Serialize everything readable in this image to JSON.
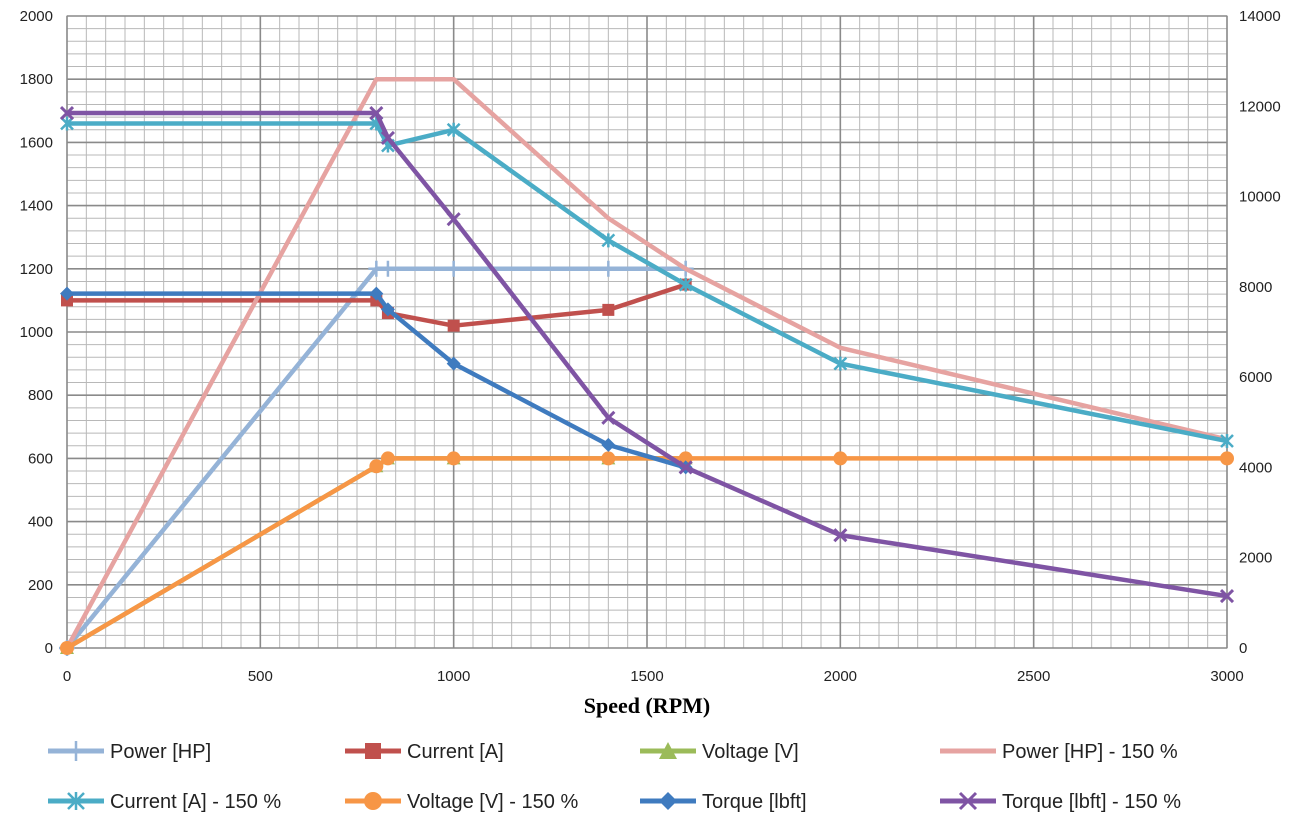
{
  "chart_data": {
    "type": "line",
    "title": "",
    "xlabel": "Speed (RPM)",
    "ylabel": "",
    "y2label": "",
    "xlim": [
      0,
      3000
    ],
    "ylim": [
      0,
      2000
    ],
    "y2lim": [
      0,
      14000
    ],
    "x_ticks": [
      0,
      500,
      1000,
      1500,
      2000,
      2500,
      3000
    ],
    "y_ticks": [
      0,
      200,
      400,
      600,
      800,
      1000,
      1200,
      1400,
      1600,
      1800,
      2000
    ],
    "y2_ticks": [
      0,
      2000,
      4000,
      6000,
      8000,
      10000,
      12000,
      14000
    ],
    "grid": true,
    "legend_position": "bottom",
    "series": [
      {
        "name": "Power [HP]",
        "color": "#95b3d7",
        "marker": "plus",
        "axis": "left",
        "x": [
          0,
          800,
          830,
          1000,
          1400,
          1600
        ],
        "y": [
          0,
          1200,
          1200,
          1200,
          1200,
          1200
        ]
      },
      {
        "name": "Current [A]",
        "color": "#c0504d",
        "marker": "square",
        "axis": "left",
        "x": [
          0,
          800,
          830,
          1000,
          1400,
          1600
        ],
        "y": [
          1100,
          1100,
          1060,
          1020,
          1070,
          1150
        ]
      },
      {
        "name": "Voltage [V]",
        "color": "#9bbb59",
        "marker": "triangle",
        "axis": "left",
        "x": [
          0,
          800,
          830,
          1000,
          1400,
          1600
        ],
        "y": [
          0,
          575,
          600,
          600,
          600,
          600
        ]
      },
      {
        "name": "Power [HP] - 150 %",
        "color": "#e6a3a1",
        "marker": "none",
        "axis": "left",
        "x": [
          0,
          800,
          1000,
          1400,
          1600,
          2000,
          3000
        ],
        "y": [
          0,
          1800,
          1800,
          1360,
          1200,
          950,
          660
        ]
      },
      {
        "name": "Current [A] - 150 %",
        "color": "#4bacc6",
        "marker": "star",
        "axis": "left",
        "x": [
          0,
          800,
          830,
          1000,
          1400,
          1600,
          2000,
          3000
        ],
        "y": [
          1660,
          1660,
          1590,
          1640,
          1290,
          1150,
          900,
          655
        ]
      },
      {
        "name": "Voltage [V] - 150 %",
        "color": "#f79646",
        "marker": "circle",
        "axis": "left",
        "x": [
          0,
          800,
          830,
          1000,
          1400,
          1600,
          2000,
          3000
        ],
        "y": [
          0,
          575,
          600,
          600,
          600,
          600,
          600,
          600
        ]
      },
      {
        "name": "Torque [lbft]",
        "color": "#3f7bbf",
        "marker": "diamond",
        "axis": "right",
        "x": [
          0,
          800,
          830,
          1000,
          1400,
          1600
        ],
        "y": [
          7850,
          7850,
          7500,
          6300,
          4500,
          4000
        ]
      },
      {
        "name": "Torque [lbft] - 150 %",
        "color": "#7f54a4",
        "marker": "x",
        "axis": "right",
        "x": [
          0,
          800,
          830,
          1000,
          1400,
          1600,
          2000,
          3000
        ],
        "y": [
          11850,
          11850,
          11300,
          9500,
          5100,
          4000,
          2500,
          1150
        ]
      }
    ]
  }
}
